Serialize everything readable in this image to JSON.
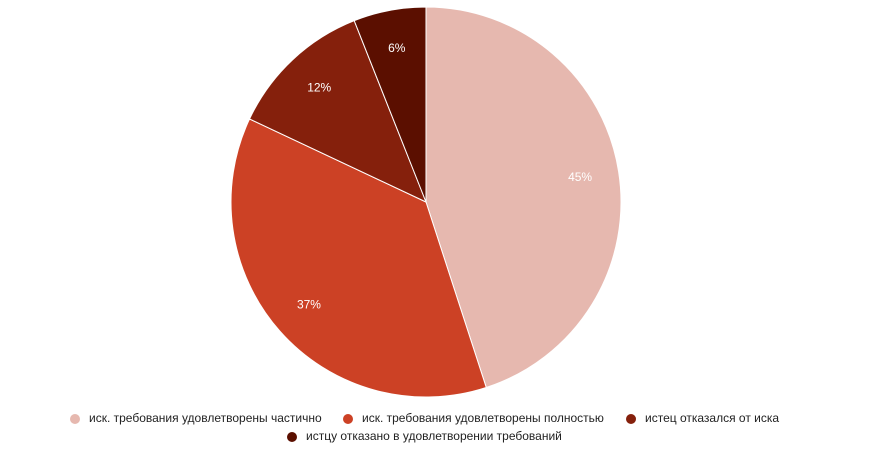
{
  "chart_data": {
    "type": "pie",
    "categories": [
      "иск. требования удовлетворены частично",
      "иск. требования удовлетворены полностью",
      "истец отказался от иска",
      "истцу отказано в удовлетворении требований"
    ],
    "values": [
      45,
      37,
      12,
      6
    ],
    "value_labels": [
      "45%",
      "37%",
      "12%",
      "6%"
    ],
    "colors": [
      "#e6b8af",
      "#cc4125",
      "#85200c",
      "#5b0f00"
    ],
    "legend": "bottom"
  }
}
